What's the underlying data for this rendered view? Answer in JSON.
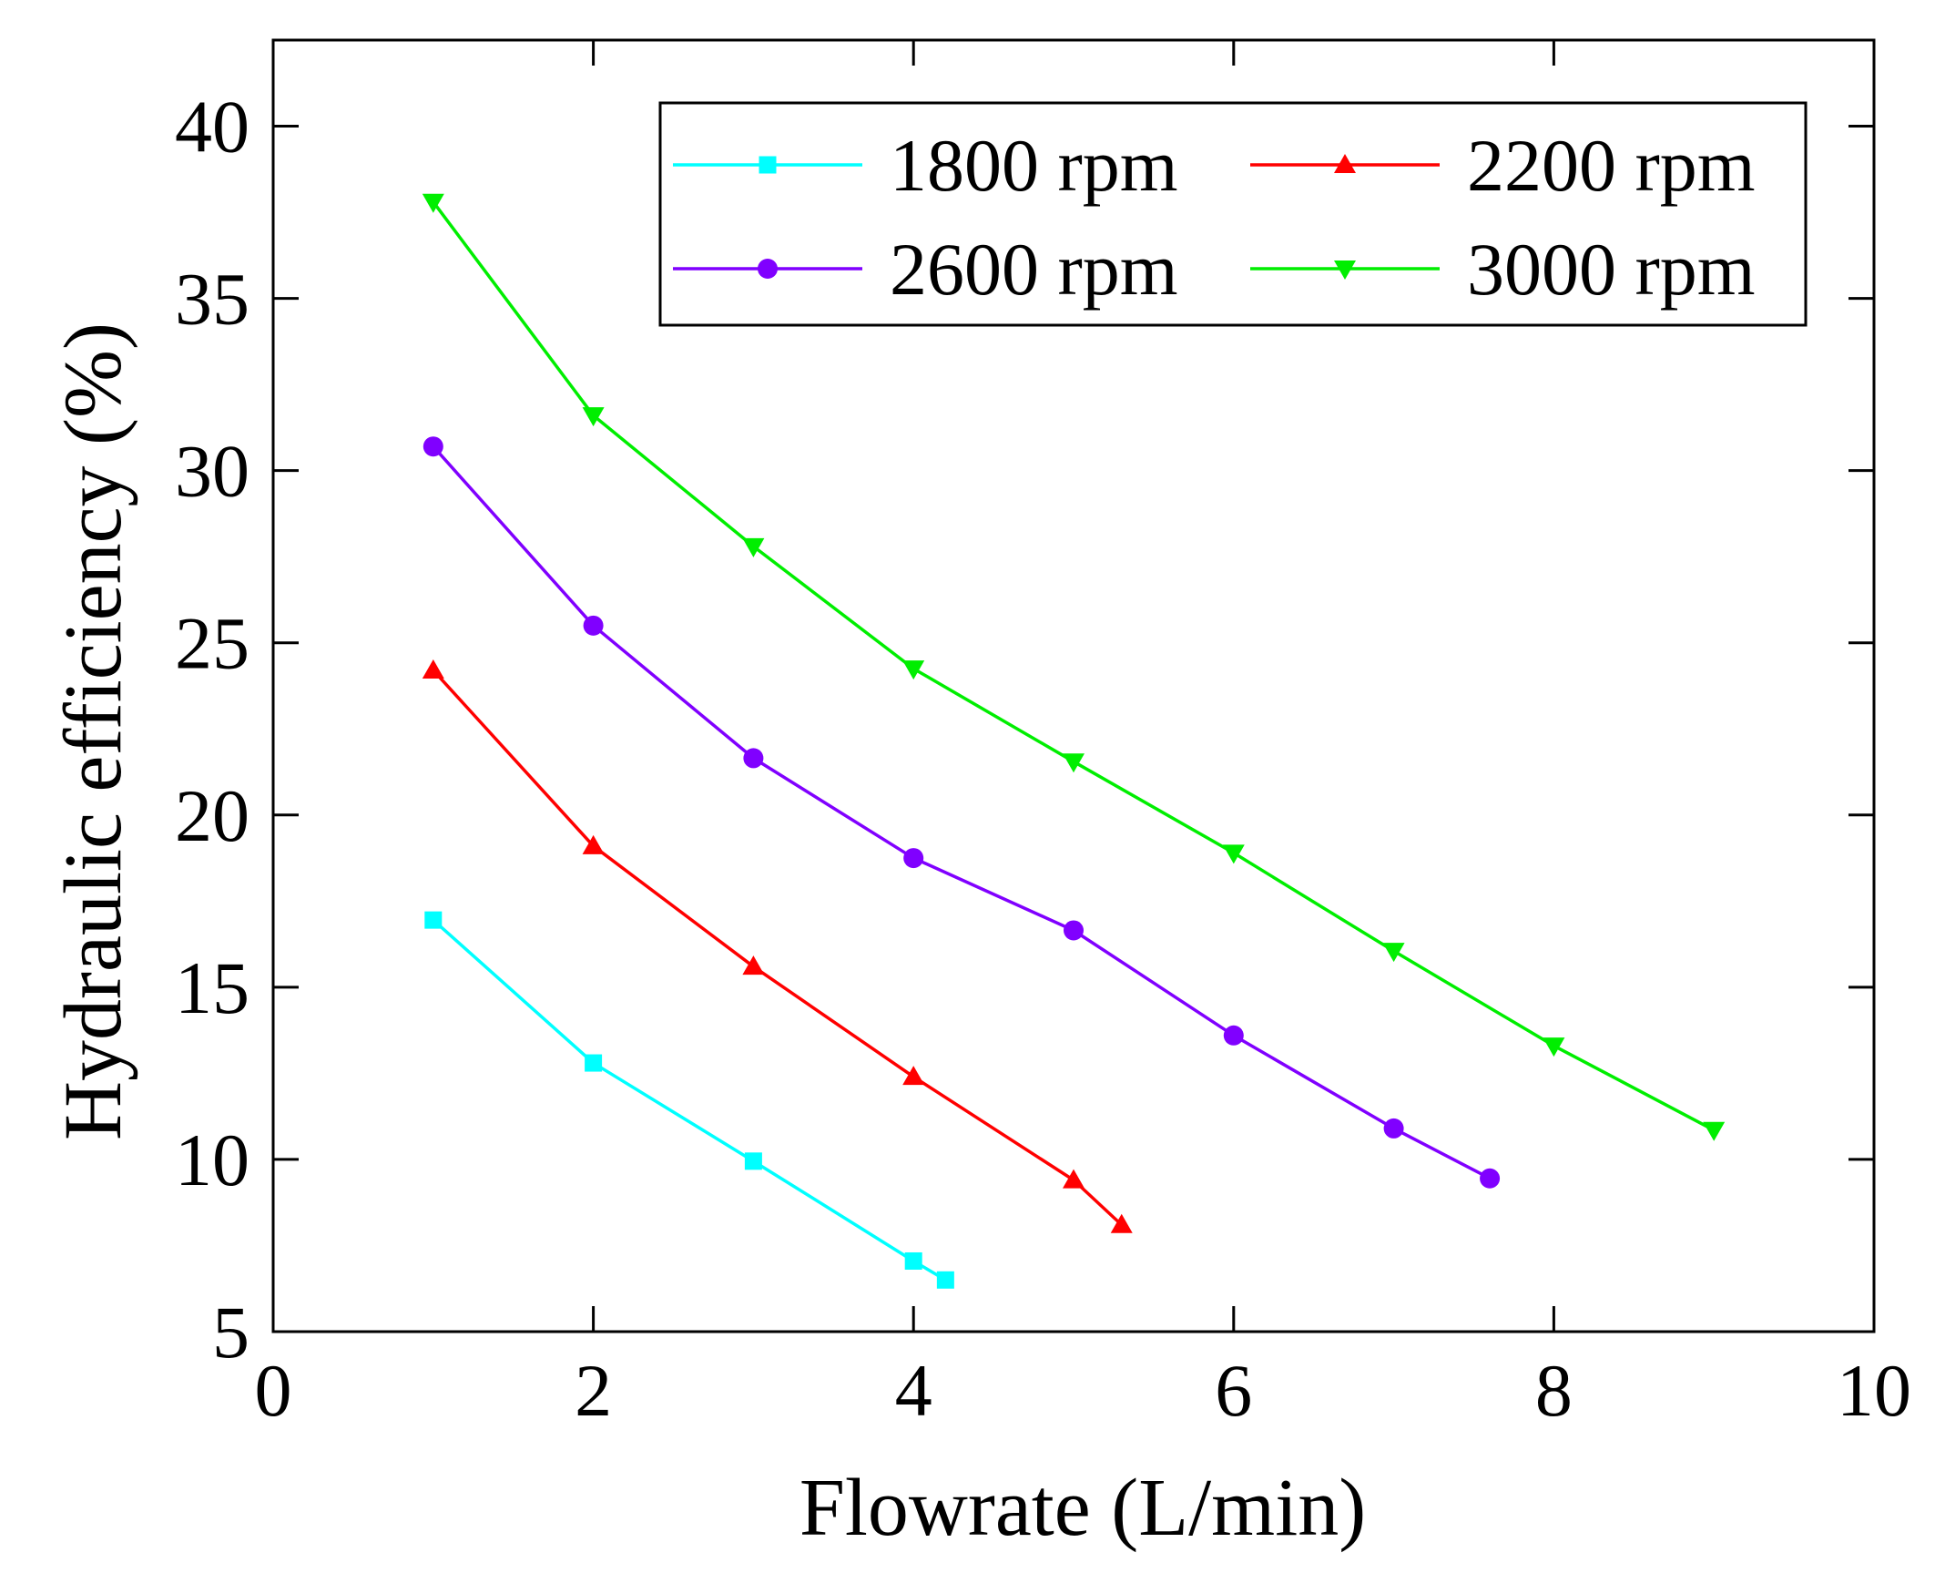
{
  "chart_data": {
    "type": "line",
    "title": "",
    "xlabel": "Flowrate (L/min)",
    "ylabel": "Hydraulic efficiency (%)",
    "xlim": [
      0,
      10
    ],
    "ylim": [
      5,
      42.5
    ],
    "x_ticks": [
      0,
      2,
      4,
      6,
      8,
      10
    ],
    "y_ticks": [
      5,
      10,
      15,
      20,
      25,
      30,
      35,
      40
    ],
    "grid": false,
    "legend_position": "top-right",
    "series": [
      {
        "name": "1800 rpm",
        "color": "#00ffff",
        "marker": "square",
        "x": [
          1,
          2,
          3,
          4,
          4.2
        ],
        "y": [
          16.95,
          12.8,
          9.95,
          7.05,
          6.5
        ]
      },
      {
        "name": "2200 rpm",
        "color": "#ff0000",
        "marker": "triangle-up",
        "x": [
          1,
          2,
          3,
          4,
          5,
          5.3
        ],
        "y": [
          24.2,
          19.1,
          15.6,
          12.4,
          9.4,
          8.1
        ]
      },
      {
        "name": "2600 rpm",
        "color": "#8000ff",
        "marker": "circle",
        "x": [
          1,
          2,
          3,
          4,
          5,
          6,
          7,
          7.6
        ],
        "y": [
          30.7,
          25.5,
          21.65,
          18.75,
          16.65,
          13.6,
          10.9,
          9.45
        ]
      },
      {
        "name": "3000 rpm",
        "color": "#00ee00",
        "marker": "triangle-down",
        "x": [
          1,
          2,
          3,
          4,
          5,
          6,
          7,
          8,
          9
        ],
        "y": [
          37.8,
          31.6,
          27.8,
          24.25,
          21.55,
          18.9,
          16.05,
          13.3,
          10.85
        ]
      }
    ]
  }
}
